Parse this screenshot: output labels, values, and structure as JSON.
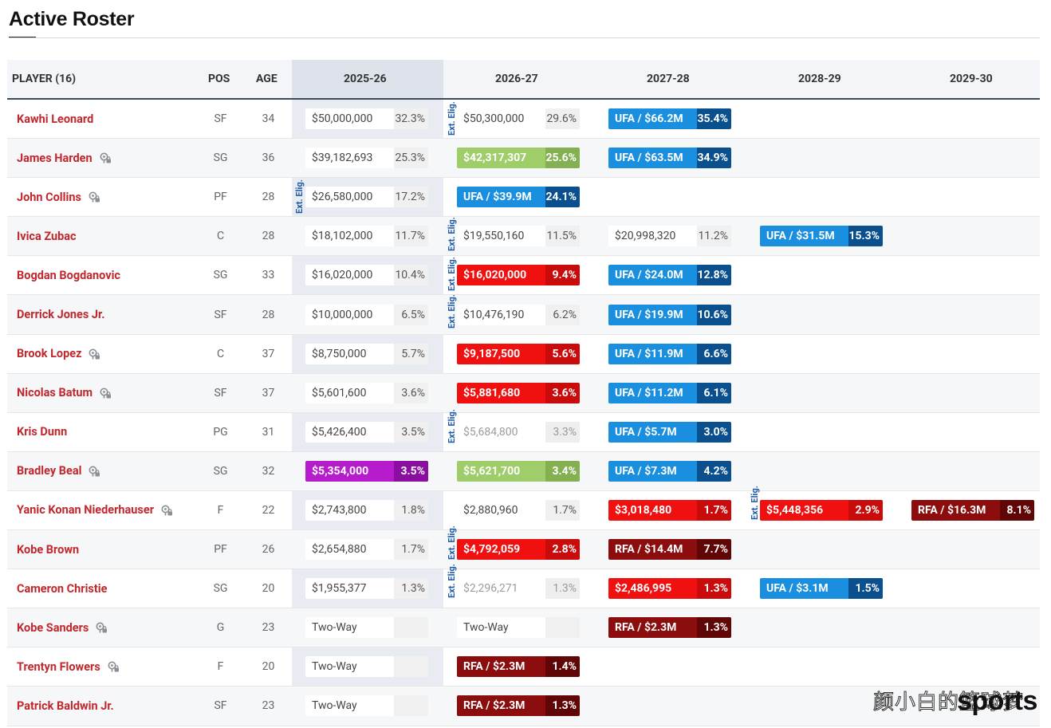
{
  "page_title": "Active Roster",
  "headers": {
    "player": "PLAYER (16)",
    "pos": "POS",
    "age": "AGE",
    "seasons": [
      "2025-26",
      "2026-27",
      "2027-28",
      "2028-29",
      "2029-30"
    ]
  },
  "elig_label": "Ext. Elig.",
  "colors": {
    "player_link": "#c0282d",
    "ufa": "#1a8fe0",
    "rfa": "#8b0d0d",
    "red_option": "#f01010",
    "green_option": "#9fcd6a",
    "purple_option": "#b61ccc",
    "header_rule": "#3b4a5d"
  },
  "rows": [
    {
      "player": "Kawhi Leonard",
      "pin": false,
      "pos": "SF",
      "age": "34",
      "c0": {
        "type": "plain",
        "amt": "$50,000,000",
        "pct": "32.3%"
      },
      "c1": {
        "type": "plain",
        "amt": "$50,300,000",
        "pct": "29.6%"
      },
      "c2": {
        "type": "ufa",
        "amt": "UFA / $66.2M",
        "pct": "35.4%"
      }
    },
    {
      "player": "James Harden",
      "pin": true,
      "pos": "SG",
      "age": "36",
      "c0": {
        "type": "plain",
        "amt": "$39,182,693",
        "pct": "25.3%"
      },
      "c1": {
        "type": "green",
        "amt": "$42,317,307",
        "pct": "25.6%"
      },
      "c2": {
        "type": "ufa",
        "amt": "UFA / $63.5M",
        "pct": "34.9%"
      }
    },
    {
      "player": "John Collins",
      "pin": true,
      "pos": "PF",
      "age": "28",
      "c0": {
        "type": "plain",
        "amt": "$26,580,000",
        "pct": "17.2%"
      },
      "c1": {
        "type": "ufa",
        "amt": "UFA / $39.9M",
        "pct": "24.1%"
      }
    },
    {
      "player": "Ivica Zubac",
      "pin": false,
      "pos": "C",
      "age": "28",
      "c0": {
        "type": "plain",
        "amt": "$18,102,000",
        "pct": "11.7%"
      },
      "c1": {
        "type": "plain",
        "amt": "$19,550,160",
        "pct": "11.5%"
      },
      "c2": {
        "type": "plain",
        "amt": "$20,998,320",
        "pct": "11.2%"
      },
      "c3": {
        "type": "ufa",
        "amt": "UFA / $31.5M",
        "pct": "15.3%"
      }
    },
    {
      "player": "Bogdan Bogdanovic",
      "pin": false,
      "pos": "SG",
      "age": "33",
      "c0": {
        "type": "plain",
        "amt": "$16,020,000",
        "pct": "10.4%"
      },
      "c1": {
        "type": "red",
        "amt": "$16,020,000",
        "pct": "9.4%"
      },
      "c2": {
        "type": "ufa",
        "amt": "UFA / $24.0M",
        "pct": "12.8%"
      }
    },
    {
      "player": "Derrick Jones Jr.",
      "pin": false,
      "pos": "SF",
      "age": "28",
      "c0": {
        "type": "plain",
        "amt": "$10,000,000",
        "pct": "6.5%"
      },
      "c1": {
        "type": "plain",
        "amt": "$10,476,190",
        "pct": "6.2%"
      },
      "c2": {
        "type": "ufa",
        "amt": "UFA / $19.9M",
        "pct": "10.6%"
      }
    },
    {
      "player": "Brook Lopez",
      "pin": true,
      "pos": "C",
      "age": "37",
      "c0": {
        "type": "plain",
        "amt": "$8,750,000",
        "pct": "5.7%"
      },
      "c1": {
        "type": "red",
        "amt": "$9,187,500",
        "pct": "5.6%"
      },
      "c2": {
        "type": "ufa",
        "amt": "UFA / $11.9M",
        "pct": "6.6%"
      }
    },
    {
      "player": "Nicolas Batum",
      "pin": true,
      "pos": "SF",
      "age": "37",
      "c0": {
        "type": "plain",
        "amt": "$5,601,600",
        "pct": "3.6%"
      },
      "c1": {
        "type": "red",
        "amt": "$5,881,680",
        "pct": "3.6%"
      },
      "c2": {
        "type": "ufa",
        "amt": "UFA / $11.2M",
        "pct": "6.1%"
      }
    },
    {
      "player": "Kris Dunn",
      "pin": false,
      "pos": "PG",
      "age": "31",
      "c0": {
        "type": "plain",
        "amt": "$5,426,400",
        "pct": "3.5%"
      },
      "c1": {
        "type": "faded",
        "amt": "$5,684,800",
        "pct": "3.3%"
      },
      "c2": {
        "type": "ufa",
        "amt": "UFA / $5.7M",
        "pct": "3.0%"
      }
    },
    {
      "player": "Bradley Beal",
      "pin": true,
      "pos": "SG",
      "age": "32",
      "c0": {
        "type": "purple",
        "amt": "$5,354,000",
        "pct": "3.5%"
      },
      "c1": {
        "type": "green",
        "amt": "$5,621,700",
        "pct": "3.4%"
      },
      "c2": {
        "type": "ufa",
        "amt": "UFA / $7.3M",
        "pct": "4.2%"
      }
    },
    {
      "player": "Yanic Konan Niederhauser",
      "pin": true,
      "pos": "F",
      "age": "22",
      "c0": {
        "type": "plain",
        "amt": "$2,743,800",
        "pct": "1.8%"
      },
      "c1": {
        "type": "plain",
        "amt": "$2,880,960",
        "pct": "1.7%"
      },
      "c2": {
        "type": "red",
        "amt": "$3,018,480",
        "pct": "1.7%"
      },
      "c3": {
        "type": "red",
        "amt": "$5,448,356",
        "pct": "2.9%"
      },
      "c4": {
        "type": "rfa",
        "amt": "RFA / $16.3M",
        "pct": "8.1%"
      }
    },
    {
      "player": "Kobe Brown",
      "pin": false,
      "pos": "PF",
      "age": "26",
      "c0": {
        "type": "plain",
        "amt": "$2,654,880",
        "pct": "1.7%"
      },
      "c1": {
        "type": "red",
        "amt": "$4,792,059",
        "pct": "2.8%"
      },
      "c2": {
        "type": "rfa",
        "amt": "RFA / $14.4M",
        "pct": "7.7%"
      }
    },
    {
      "player": "Cameron Christie",
      "pin": false,
      "pos": "SG",
      "age": "20",
      "c0": {
        "type": "plain",
        "amt": "$1,955,377",
        "pct": "1.3%"
      },
      "c1": {
        "type": "faded",
        "amt": "$2,296,271",
        "pct": "1.3%"
      },
      "c2": {
        "type": "red",
        "amt": "$2,486,995",
        "pct": "1.3%"
      },
      "c3": {
        "type": "ufa",
        "amt": "UFA / $3.1M",
        "pct": "1.5%"
      }
    },
    {
      "player": "Kobe Sanders",
      "pin": true,
      "pos": "G",
      "age": "23",
      "c0": {
        "type": "plain",
        "amt": "Two-Way",
        "pct": ""
      },
      "c1": {
        "type": "plain",
        "amt": "Two-Way",
        "pct": ""
      },
      "c2": {
        "type": "rfa",
        "amt": "RFA / $2.3M",
        "pct": "1.3%"
      }
    },
    {
      "player": "Trentyn Flowers",
      "pin": true,
      "pos": "F",
      "age": "20",
      "c0": {
        "type": "plain",
        "amt": "Two-Way",
        "pct": ""
      },
      "c1": {
        "type": "rfa",
        "amt": "RFA / $2.3M",
        "pct": "1.4%"
      }
    },
    {
      "player": "Patrick Baldwin Jr.",
      "pin": false,
      "pos": "SF",
      "age": "23",
      "c0": {
        "type": "plain",
        "amt": "Two-Way",
        "pct": ""
      },
      "c1": {
        "type": "rfa",
        "amt": "RFA / $2.3M",
        "pct": "1.3%"
      }
    }
  ],
  "watermark": {
    "cn": "颜小白的篮球梦",
    "brand": "sports"
  }
}
